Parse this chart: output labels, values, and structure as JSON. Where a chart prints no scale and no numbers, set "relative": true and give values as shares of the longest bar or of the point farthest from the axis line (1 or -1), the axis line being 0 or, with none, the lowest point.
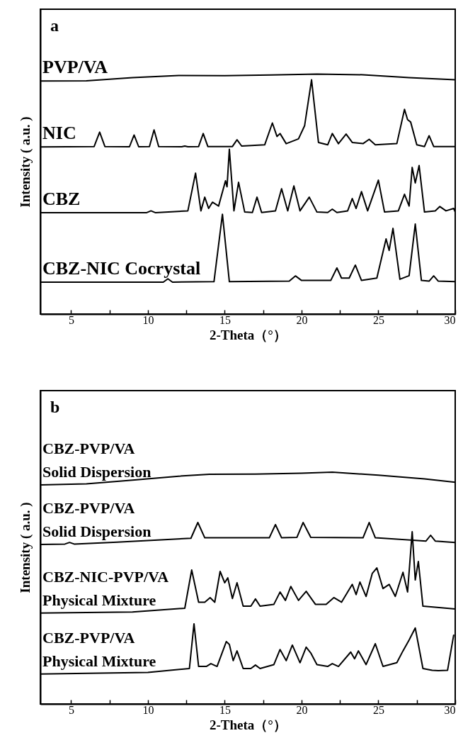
{
  "chart_data": [
    {
      "type": "line",
      "title": "a",
      "xlabel": "2-Theta（°）",
      "ylabel": "Intensity ( a.u. )",
      "relative": true,
      "grid": false,
      "xlim": [
        3,
        30
      ],
      "xticks": [
        5,
        {
          "value": 7.5,
          "label": null
        },
        10,
        {
          "value": 12.5,
          "label": null
        },
        15,
        {
          "value": 17.5,
          "label": null
        },
        20,
        {
          "value": 22.5,
          "label": null
        },
        25,
        {
          "value": 27.5,
          "label": null
        },
        30
      ],
      "series": [
        {
          "name": "PVP/VA",
          "color": "#000000",
          "x": [
            3,
            6,
            9,
            12,
            15,
            18,
            21,
            24,
            27,
            30
          ],
          "values": [
            0.971,
            0.972,
            0.985,
            0.994,
            0.993,
            0.996,
            1,
            0.997,
            0.985,
            0.976
          ]
        },
        {
          "name": "NIC",
          "color": "#000000",
          "x": [
            3,
            6.5,
            6.86,
            7.2,
            8.8,
            9.1,
            9.4,
            10.1,
            10.4,
            10.7,
            12.2,
            12.4,
            12.6,
            13.3,
            13.6,
            13.9,
            15.5,
            15.8,
            16.1,
            17.6,
            18.1,
            18.4,
            18.6,
            19.0,
            19.8,
            20.2,
            20.65,
            21.1,
            21.7,
            22.0,
            22.4,
            22.9,
            23.3,
            24.0,
            24.4,
            24.8,
            26.2,
            26.7,
            26.9,
            27.1,
            27.5,
            28.0,
            28.3,
            28.6,
            30
          ],
          "values": [
            0.696,
            0.698,
            0.758,
            0.698,
            0.697,
            0.746,
            0.697,
            0.698,
            0.767,
            0.698,
            0.697,
            0.7,
            0.697,
            0.698,
            0.752,
            0.698,
            0.698,
            0.726,
            0.7,
            0.705,
            0.796,
            0.74,
            0.752,
            0.71,
            0.73,
            0.785,
            0.976,
            0.715,
            0.705,
            0.752,
            0.71,
            0.75,
            0.715,
            0.71,
            0.728,
            0.705,
            0.71,
            0.853,
            0.81,
            0.8,
            0.705,
            0.698,
            0.743,
            0.698,
            0.698
          ]
        },
        {
          "name": "CBZ",
          "color": "#000000",
          "x": [
            3,
            9.9,
            10.2,
            10.5,
            12.6,
            13.1,
            13.45,
            13.7,
            13.95,
            14.2,
            14.6,
            15.05,
            15.15,
            15.3,
            15.6,
            15.9,
            16.3,
            16.8,
            17.1,
            17.4,
            18.3,
            18.7,
            19.1,
            19.5,
            19.9,
            20.5,
            21.0,
            21.7,
            22.0,
            22.3,
            23.0,
            23.3,
            23.55,
            23.9,
            24.3,
            25.0,
            25.4,
            26.3,
            26.7,
            27.0,
            27.2,
            27.4,
            27.65,
            28.0,
            28.7,
            29.0,
            29.4,
            29.9,
            30
          ],
          "values": [
            0.422,
            0.422,
            0.43,
            0.422,
            0.43,
            0.587,
            0.43,
            0.487,
            0.44,
            0.466,
            0.45,
            0.555,
            0.53,
            0.687,
            0.43,
            0.549,
            0.425,
            0.423,
            0.487,
            0.423,
            0.43,
            0.522,
            0.43,
            0.534,
            0.43,
            0.487,
            0.425,
            0.423,
            0.437,
            0.423,
            0.43,
            0.481,
            0.44,
            0.51,
            0.43,
            0.558,
            0.425,
            0.43,
            0.499,
            0.45,
            0.611,
            0.546,
            0.619,
            0.425,
            0.43,
            0.448,
            0.43,
            0.44,
            0.425
          ]
        },
        {
          "name": "CBZ-NIC Cocrystal",
          "color": "#000000",
          "x": [
            3,
            11.0,
            11.3,
            11.6,
            14.3,
            14.85,
            15.3,
            19.2,
            19.6,
            20.0,
            21.9,
            22.3,
            22.6,
            23.1,
            23.5,
            23.9,
            24.9,
            25.5,
            25.7,
            25.95,
            26.4,
            27.0,
            27.4,
            27.8,
            28.3,
            28.6,
            28.9,
            30
          ],
          "values": [
            0.133,
            0.133,
            0.147,
            0.133,
            0.135,
            0.416,
            0.135,
            0.137,
            0.159,
            0.14,
            0.14,
            0.192,
            0.15,
            0.15,
            0.204,
            0.14,
            0.15,
            0.313,
            0.265,
            0.357,
            0.145,
            0.16,
            0.375,
            0.14,
            0.137,
            0.159,
            0.137,
            0.135
          ]
        }
      ]
    },
    {
      "type": "line",
      "title": "b",
      "xlabel": "2-Theta（°）",
      "ylabel": "Intensity ( a.u. )",
      "relative": true,
      "grid": false,
      "xlim": [
        3,
        30
      ],
      "xticks": [
        5,
        {
          "value": 7.5,
          "label": null
        },
        10,
        {
          "value": 12.5,
          "label": null
        },
        15,
        {
          "value": 17.5,
          "label": null
        },
        20,
        {
          "value": 22.5,
          "label": null
        },
        25,
        {
          "value": 27.5,
          "label": null
        },
        30
      ],
      "series": [
        {
          "name": "CBZ-PVP/VA\nSolid Dispersion",
          "color": "#000000",
          "x": [
            3,
            6,
            9,
            12,
            14,
            17,
            20,
            22,
            25,
            28,
            30
          ],
          "values": [
            0.945,
            0.95,
            0.966,
            0.983,
            0.991,
            0.992,
            0.996,
            1,
            0.987,
            0.971,
            0.957
          ]
        },
        {
          "name": "CBZ-PVP/VA\nSolid Dispersion",
          "color": "#000000",
          "x": [
            3,
            4.6,
            4.9,
            5.2,
            8,
            12.8,
            13.25,
            13.7,
            17.9,
            18.3,
            18.7,
            19.7,
            20.1,
            20.6,
            24.0,
            24.4,
            24.8,
            28.1,
            28.4,
            28.7,
            30
          ],
          "values": [
            0.688,
            0.69,
            0.697,
            0.69,
            0.698,
            0.715,
            0.783,
            0.717,
            0.717,
            0.774,
            0.717,
            0.719,
            0.783,
            0.719,
            0.717,
            0.783,
            0.717,
            0.703,
            0.728,
            0.703,
            0.697
          ]
        },
        {
          "name": "CBZ-NIC-PVP/VA\n Physical Mixture",
          "color": "#000000",
          "x": [
            3,
            9,
            12.4,
            12.85,
            13.3,
            13.7,
            14.05,
            14.35,
            14.7,
            15.0,
            15.2,
            15.5,
            15.8,
            16.2,
            16.7,
            17.0,
            17.3,
            18.2,
            18.6,
            18.95,
            19.3,
            19.8,
            20.3,
            20.9,
            21.6,
            22.1,
            22.6,
            23.3,
            23.55,
            23.8,
            24.2,
            24.6,
            24.9,
            25.3,
            25.7,
            26.1,
            26.6,
            26.9,
            27.2,
            27.4,
            27.6,
            27.9,
            30
          ],
          "values": [
            0.392,
            0.397,
            0.413,
            0.578,
            0.439,
            0.439,
            0.459,
            0.439,
            0.572,
            0.523,
            0.544,
            0.455,
            0.523,
            0.422,
            0.422,
            0.453,
            0.422,
            0.43,
            0.483,
            0.447,
            0.507,
            0.447,
            0.486,
            0.43,
            0.43,
            0.459,
            0.439,
            0.516,
            0.472,
            0.526,
            0.464,
            0.563,
            0.587,
            0.498,
            0.516,
            0.464,
            0.568,
            0.483,
            0.743,
            0.535,
            0.615,
            0.422,
            0.41
          ]
        },
        {
          "name": "CBZ-PVP/VA\n Physical Mixture",
          "color": "#000000",
          "x": [
            3,
            10,
            12.7,
            13.0,
            13.3,
            13.8,
            14.1,
            14.5,
            15.1,
            15.3,
            15.55,
            15.8,
            16.2,
            16.7,
            17.0,
            17.3,
            18.2,
            18.6,
            19.0,
            19.4,
            19.9,
            20.3,
            20.6,
            21.0,
            21.7,
            22.0,
            22.4,
            23.2,
            23.45,
            23.7,
            24.2,
            24.8,
            25.3,
            26.2,
            26.6,
            27.0,
            27.4,
            27.9,
            28.5,
            28.9,
            29.5,
            29.9
          ],
          "values": [
            0.129,
            0.136,
            0.153,
            0.346,
            0.162,
            0.162,
            0.174,
            0.162,
            0.269,
            0.257,
            0.187,
            0.229,
            0.153,
            0.153,
            0.168,
            0.153,
            0.17,
            0.235,
            0.187,
            0.254,
            0.178,
            0.245,
            0.22,
            0.17,
            0.162,
            0.174,
            0.162,
            0.224,
            0.195,
            0.229,
            0.17,
            0.26,
            0.162,
            0.178,
            0.229,
            0.276,
            0.328,
            0.153,
            0.145,
            0.144,
            0.145,
            0.297
          ]
        }
      ]
    }
  ]
}
